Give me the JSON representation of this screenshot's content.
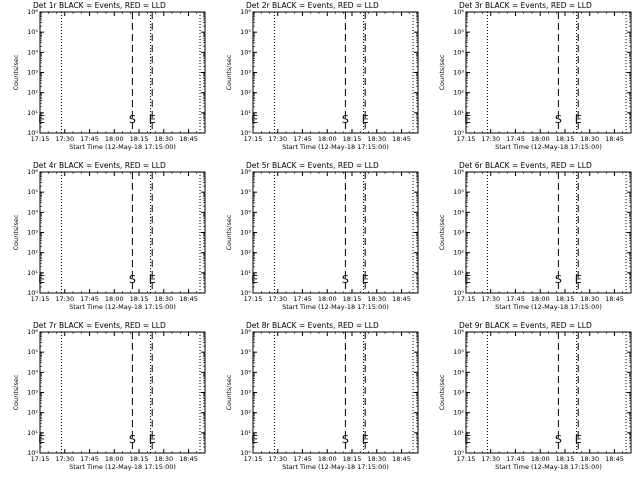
{
  "colors": {
    "background": "#ffffff",
    "foreground": "#000000",
    "lld_series": "#ff0000"
  },
  "chart_data": [
    {
      "type": "line",
      "title": "Det 1r BLACK = Events, RED = LLD",
      "xlabel": "Start Time (12-May-18 17:15:00)",
      "ylabel": "Counts/sec",
      "x_ticks": [
        "17:15",
        "17:30",
        "17:45",
        "18:00",
        "18:15",
        "18:30",
        "18:45"
      ],
      "y_ticks": [
        "10⁰",
        "10¹",
        "10²",
        "10³",
        "10⁴",
        "10⁵",
        "10⁶"
      ],
      "y_scale": "log",
      "ylim": [
        1,
        1000000
      ],
      "xlim": [
        "17:15",
        "18:55"
      ],
      "dotted_lines": [
        "17:28",
        "18:22",
        "18:52"
      ],
      "dashed_lines": [
        "18:11",
        "18:23"
      ],
      "markers": [
        {
          "label": "S",
          "x": "18:11"
        },
        {
          "label": "E",
          "x": "18:23"
        },
        {
          "label": "E",
          "x": "17:16"
        }
      ],
      "series": [
        {
          "name": "Events",
          "color": "black",
          "x": [],
          "y": []
        },
        {
          "name": "LLD",
          "color": "red",
          "x": [],
          "y": []
        }
      ]
    },
    {
      "type": "line",
      "title": "Det 2r BLACK = Events, RED = LLD",
      "xlabel": "Start Time (12-May-18 17:15:00)",
      "ylabel": "Counts/sec",
      "x_ticks": [
        "17:15",
        "17:30",
        "17:45",
        "18:00",
        "18:15",
        "18:30",
        "18:45"
      ],
      "y_ticks": [
        "10⁰",
        "10¹",
        "10²",
        "10³",
        "10⁴",
        "10⁵",
        "10⁶"
      ],
      "y_scale": "log",
      "ylim": [
        1,
        1000000
      ],
      "xlim": [
        "17:15",
        "18:55"
      ],
      "dotted_lines": [
        "17:28",
        "18:22",
        "18:52"
      ],
      "dashed_lines": [
        "18:11",
        "18:23"
      ],
      "markers": [
        {
          "label": "S",
          "x": "18:11"
        },
        {
          "label": "E",
          "x": "18:23"
        },
        {
          "label": "E",
          "x": "17:16"
        }
      ],
      "series": [
        {
          "name": "Events",
          "color": "black",
          "x": [],
          "y": []
        },
        {
          "name": "LLD",
          "color": "red",
          "x": [],
          "y": []
        }
      ]
    },
    {
      "type": "line",
      "title": "Det 3r BLACK = Events, RED = LLD",
      "xlabel": "Start Time (12-May-18 17:15:00)",
      "ylabel": "Counts/sec",
      "x_ticks": [
        "17:15",
        "17:30",
        "17:45",
        "18:00",
        "18:15",
        "18:30",
        "18:45"
      ],
      "y_ticks": [
        "10⁰",
        "10¹",
        "10²",
        "10³",
        "10⁴",
        "10⁵",
        "10⁶"
      ],
      "y_scale": "log",
      "ylim": [
        1,
        1000000
      ],
      "xlim": [
        "17:15",
        "18:55"
      ],
      "dotted_lines": [
        "17:28",
        "18:22",
        "18:52"
      ],
      "dashed_lines": [
        "18:11",
        "18:23"
      ],
      "markers": [
        {
          "label": "S",
          "x": "18:11"
        },
        {
          "label": "E",
          "x": "18:23"
        },
        {
          "label": "E",
          "x": "17:16"
        }
      ],
      "series": [
        {
          "name": "Events",
          "color": "black",
          "x": [],
          "y": []
        },
        {
          "name": "LLD",
          "color": "red",
          "x": [],
          "y": []
        }
      ]
    },
    {
      "type": "line",
      "title": "Det 4r BLACK = Events, RED = LLD",
      "xlabel": "Start Time (12-May-18 17:15:00)",
      "ylabel": "Counts/sec",
      "x_ticks": [
        "17:15",
        "17:30",
        "17:45",
        "18:00",
        "18:15",
        "18:30",
        "18:45"
      ],
      "y_ticks": [
        "10⁰",
        "10¹",
        "10²",
        "10³",
        "10⁴",
        "10⁵",
        "10⁶"
      ],
      "y_scale": "log",
      "ylim": [
        1,
        1000000
      ],
      "xlim": [
        "17:15",
        "18:55"
      ],
      "dotted_lines": [
        "17:28",
        "18:22",
        "18:52"
      ],
      "dashed_lines": [
        "18:11",
        "18:23"
      ],
      "markers": [
        {
          "label": "S",
          "x": "18:11"
        },
        {
          "label": "E",
          "x": "18:23"
        },
        {
          "label": "E",
          "x": "17:16"
        }
      ],
      "series": [
        {
          "name": "Events",
          "color": "black",
          "x": [],
          "y": []
        },
        {
          "name": "LLD",
          "color": "red",
          "x": [],
          "y": []
        }
      ]
    },
    {
      "type": "line",
      "title": "Det 5r BLACK = Events, RED = LLD",
      "xlabel": "Start Time (12-May-18 17:15:00)",
      "ylabel": "Counts/sec",
      "x_ticks": [
        "17:15",
        "17:30",
        "17:45",
        "18:00",
        "18:15",
        "18:30",
        "18:45"
      ],
      "y_ticks": [
        "10⁰",
        "10¹",
        "10²",
        "10³",
        "10⁴",
        "10⁵",
        "10⁶"
      ],
      "y_scale": "log",
      "ylim": [
        1,
        1000000
      ],
      "xlim": [
        "17:15",
        "18:55"
      ],
      "dotted_lines": [
        "17:28",
        "18:22",
        "18:52"
      ],
      "dashed_lines": [
        "18:11",
        "18:23"
      ],
      "markers": [
        {
          "label": "S",
          "x": "18:11"
        },
        {
          "label": "E",
          "x": "18:23"
        },
        {
          "label": "E",
          "x": "17:16"
        }
      ],
      "series": [
        {
          "name": "Events",
          "color": "black",
          "x": [],
          "y": []
        },
        {
          "name": "LLD",
          "color": "red",
          "x": [],
          "y": []
        }
      ]
    },
    {
      "type": "line",
      "title": "Det 6r BLACK = Events, RED = LLD",
      "xlabel": "Start Time (12-May-18 17:15:00)",
      "ylabel": "Counts/sec",
      "x_ticks": [
        "17:15",
        "17:30",
        "17:45",
        "18:00",
        "18:15",
        "18:30",
        "18:45"
      ],
      "y_ticks": [
        "10⁰",
        "10¹",
        "10²",
        "10³",
        "10⁴",
        "10⁵",
        "10⁶"
      ],
      "y_scale": "log",
      "ylim": [
        1,
        1000000
      ],
      "xlim": [
        "17:15",
        "18:55"
      ],
      "dotted_lines": [
        "17:28",
        "18:22",
        "18:52"
      ],
      "dashed_lines": [
        "18:11",
        "18:23"
      ],
      "markers": [
        {
          "label": "S",
          "x": "18:11"
        },
        {
          "label": "E",
          "x": "18:23"
        },
        {
          "label": "E",
          "x": "17:16"
        }
      ],
      "series": [
        {
          "name": "Events",
          "color": "black",
          "x": [],
          "y": []
        },
        {
          "name": "LLD",
          "color": "red",
          "x": [],
          "y": []
        }
      ]
    },
    {
      "type": "line",
      "title": "Det 7r BLACK = Events, RED = LLD",
      "xlabel": "Start Time (12-May-18 17:15:00)",
      "ylabel": "Counts/sec",
      "x_ticks": [
        "17:15",
        "17:30",
        "17:45",
        "18:00",
        "18:15",
        "18:30",
        "18:45"
      ],
      "y_ticks": [
        "10⁰",
        "10¹",
        "10²",
        "10³",
        "10⁴",
        "10⁵",
        "10⁶"
      ],
      "y_scale": "log",
      "ylim": [
        1,
        1000000
      ],
      "xlim": [
        "17:15",
        "18:55"
      ],
      "dotted_lines": [
        "17:28",
        "18:22",
        "18:52"
      ],
      "dashed_lines": [
        "18:11",
        "18:23"
      ],
      "markers": [
        {
          "label": "S",
          "x": "18:11"
        },
        {
          "label": "E",
          "x": "18:23"
        },
        {
          "label": "E",
          "x": "17:16"
        }
      ],
      "series": [
        {
          "name": "Events",
          "color": "black",
          "x": [],
          "y": []
        },
        {
          "name": "LLD",
          "color": "red",
          "x": [],
          "y": []
        }
      ]
    },
    {
      "type": "line",
      "title": "Det 8r BLACK = Events, RED = LLD",
      "xlabel": "Start Time (12-May-18 17:15:00)",
      "ylabel": "Counts/sec",
      "x_ticks": [
        "17:15",
        "17:30",
        "17:45",
        "18:00",
        "18:15",
        "18:30",
        "18:45"
      ],
      "y_ticks": [
        "10⁰",
        "10¹",
        "10²",
        "10³",
        "10⁴",
        "10⁵",
        "10⁶"
      ],
      "y_scale": "log",
      "ylim": [
        1,
        1000000
      ],
      "xlim": [
        "17:15",
        "18:55"
      ],
      "dotted_lines": [
        "17:28",
        "18:22",
        "18:52"
      ],
      "dashed_lines": [
        "18:11",
        "18:23"
      ],
      "markers": [
        {
          "label": "S",
          "x": "18:11"
        },
        {
          "label": "E",
          "x": "18:23"
        },
        {
          "label": "E",
          "x": "17:16"
        }
      ],
      "series": [
        {
          "name": "Events",
          "color": "black",
          "x": [],
          "y": []
        },
        {
          "name": "LLD",
          "color": "red",
          "x": [],
          "y": []
        }
      ]
    },
    {
      "type": "line",
      "title": "Det 9r BLACK = Events, RED = LLD",
      "xlabel": "Start Time (12-May-18 17:15:00)",
      "ylabel": "Counts/sec",
      "x_ticks": [
        "17:15",
        "17:30",
        "17:45",
        "18:00",
        "18:15",
        "18:30",
        "18:45"
      ],
      "y_ticks": [
        "10⁰",
        "10¹",
        "10²",
        "10³",
        "10⁴",
        "10⁵",
        "10⁶"
      ],
      "y_scale": "log",
      "ylim": [
        1,
        1000000
      ],
      "xlim": [
        "17:15",
        "18:55"
      ],
      "dotted_lines": [
        "17:28",
        "18:22",
        "18:52"
      ],
      "dashed_lines": [
        "18:11",
        "18:23"
      ],
      "markers": [
        {
          "label": "S",
          "x": "18:11"
        },
        {
          "label": "E",
          "x": "18:23"
        },
        {
          "label": "E",
          "x": "17:16"
        }
      ],
      "series": [
        {
          "name": "Events",
          "color": "black",
          "x": [],
          "y": []
        },
        {
          "name": "LLD",
          "color": "red",
          "x": [],
          "y": []
        }
      ]
    }
  ]
}
